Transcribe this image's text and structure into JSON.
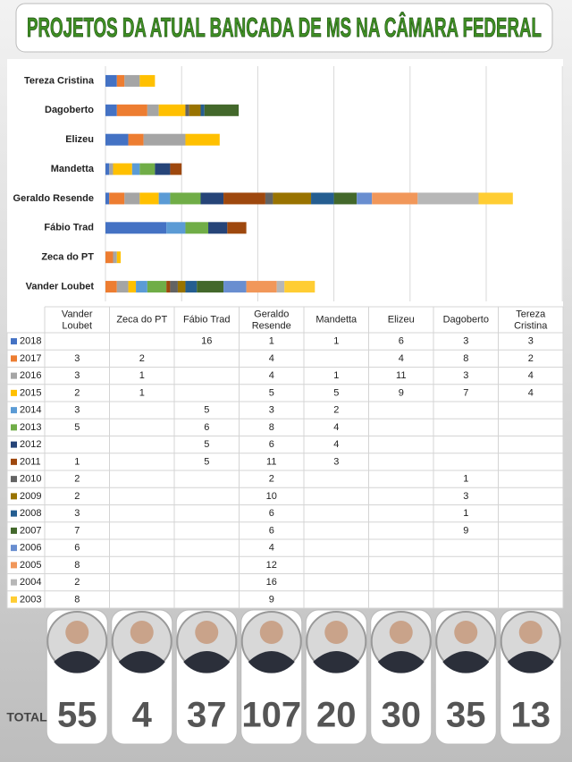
{
  "chart_data": {
    "type": "stacked-bar",
    "title": "PROJETOS DA ATUAL BANCADA DE MS NA CÂMARA FEDERAL",
    "categories": [
      "Vander Loubet",
      "Zeca do PT",
      "Fábio Trad",
      "Geraldo Resende",
      "Mandetta",
      "Elizeu",
      "Dagoberto",
      "Tereza Cristina"
    ],
    "xlim": [
      0,
      120
    ],
    "xticks": [
      0,
      20,
      40,
      60,
      80,
      100,
      120
    ],
    "grid": true,
    "series": [
      {
        "name": "2018",
        "color": "#4472c4",
        "values": [
          null,
          null,
          16,
          1,
          1,
          6,
          3,
          3
        ]
      },
      {
        "name": "2017",
        "color": "#ed7d31",
        "values": [
          3,
          2,
          null,
          4,
          null,
          4,
          8,
          2
        ]
      },
      {
        "name": "2016",
        "color": "#a5a5a5",
        "values": [
          3,
          1,
          null,
          4,
          1,
          11,
          3,
          4
        ]
      },
      {
        "name": "2015",
        "color": "#ffc000",
        "values": [
          2,
          1,
          null,
          5,
          5,
          9,
          7,
          4
        ]
      },
      {
        "name": "2014",
        "color": "#5b9bd5",
        "values": [
          3,
          null,
          5,
          3,
          2,
          null,
          null,
          null
        ]
      },
      {
        "name": "2013",
        "color": "#70ad47",
        "values": [
          5,
          null,
          6,
          8,
          4,
          null,
          null,
          null
        ]
      },
      {
        "name": "2012",
        "color": "#264478",
        "values": [
          null,
          null,
          5,
          6,
          4,
          null,
          null,
          null
        ]
      },
      {
        "name": "2011",
        "color": "#9e480e",
        "values": [
          1,
          null,
          5,
          11,
          3,
          null,
          null,
          null
        ]
      },
      {
        "name": "2010",
        "color": "#636363",
        "values": [
          2,
          null,
          null,
          2,
          null,
          null,
          1,
          null
        ]
      },
      {
        "name": "2009",
        "color": "#997300",
        "values": [
          2,
          null,
          null,
          10,
          null,
          null,
          3,
          null
        ]
      },
      {
        "name": "2008",
        "color": "#255e91",
        "values": [
          3,
          null,
          null,
          6,
          null,
          null,
          1,
          null
        ]
      },
      {
        "name": "2007",
        "color": "#43682b",
        "values": [
          7,
          null,
          null,
          6,
          null,
          null,
          9,
          null
        ]
      },
      {
        "name": "2006",
        "color": "#698ed0",
        "values": [
          6,
          null,
          null,
          4,
          null,
          null,
          null,
          null
        ]
      },
      {
        "name": "2005",
        "color": "#f1975a",
        "values": [
          8,
          null,
          null,
          12,
          null,
          null,
          null,
          null
        ]
      },
      {
        "name": "2004",
        "color": "#b7b7b7",
        "values": [
          2,
          null,
          null,
          16,
          null,
          null,
          null,
          null
        ]
      },
      {
        "name": "2003",
        "color": "#ffcd33",
        "values": [
          8,
          null,
          null,
          9,
          null,
          null,
          null,
          null
        ]
      }
    ],
    "total_label": "TOTAL",
    "totals": [
      55,
      4,
      37,
      107,
      20,
      30,
      35,
      13
    ]
  }
}
